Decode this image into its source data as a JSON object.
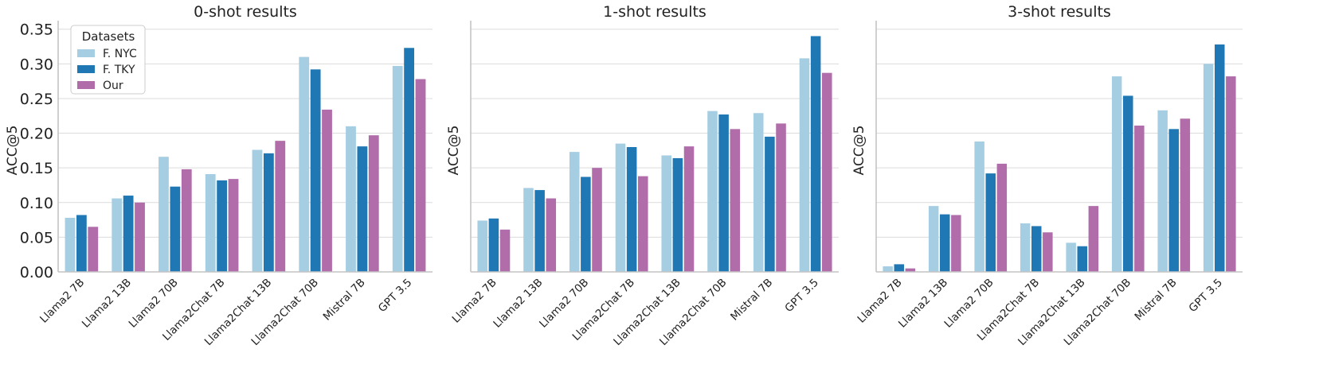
{
  "chart_data": [
    {
      "type": "bar",
      "title": "0-shot results",
      "ylabel": "ACC@5",
      "ylim": [
        0,
        0.36
      ],
      "yticks": [
        "0.00",
        "0.05",
        "0.10",
        "0.15",
        "0.20",
        "0.25",
        "0.30",
        "0.35"
      ],
      "show_ytick_labels": true,
      "categories": [
        "Llama2 7B",
        "Llama2 13B",
        "Llama2 70B",
        "Llama2Chat 7B",
        "Llama2Chat 13B",
        "Llama2Chat 70B",
        "Mistral 7B",
        "GPT 3.5"
      ],
      "series": [
        {
          "name": "F. NYC",
          "values": [
            0.078,
            0.106,
            0.166,
            0.141,
            0.176,
            0.31,
            0.21,
            0.297
          ]
        },
        {
          "name": "F. TKY",
          "values": [
            0.082,
            0.11,
            0.123,
            0.132,
            0.171,
            0.292,
            0.181,
            0.323
          ]
        },
        {
          "name": "Our",
          "values": [
            0.065,
            0.1,
            0.148,
            0.134,
            0.189,
            0.234,
            0.197,
            0.278
          ]
        }
      ],
      "legend": {
        "title": "Datasets",
        "position": "top-left"
      }
    },
    {
      "type": "bar",
      "title": "1-shot results",
      "ylabel": "ACC@5",
      "ylim": [
        0,
        0.36
      ],
      "yticks": [
        "0.00",
        "0.05",
        "0.10",
        "0.15",
        "0.20",
        "0.25",
        "0.30",
        "0.35"
      ],
      "show_ytick_labels": false,
      "categories": [
        "Llama2 7B",
        "Llama2 13B",
        "Llama2 70B",
        "Llama2Chat 7B",
        "Llama2Chat 13B",
        "Llama2Chat 70B",
        "Mistral 7B",
        "GPT 3.5"
      ],
      "series": [
        {
          "name": "F. NYC",
          "values": [
            0.074,
            0.121,
            0.173,
            0.185,
            0.168,
            0.232,
            0.229,
            0.308
          ]
        },
        {
          "name": "F. TKY",
          "values": [
            0.077,
            0.118,
            0.137,
            0.18,
            0.164,
            0.227,
            0.195,
            0.34
          ]
        },
        {
          "name": "Our",
          "values": [
            0.061,
            0.106,
            0.15,
            0.138,
            0.181,
            0.206,
            0.214,
            0.287
          ]
        }
      ]
    },
    {
      "type": "bar",
      "title": "3-shot results",
      "ylabel": "ACC@5",
      "ylim": [
        0,
        0.36
      ],
      "yticks": [
        "0.00",
        "0.05",
        "0.10",
        "0.15",
        "0.20",
        "0.25",
        "0.30",
        "0.35"
      ],
      "show_ytick_labels": false,
      "categories": [
        "Llama2 7B",
        "Llama2 13B",
        "Llama2 70B",
        "Llama2Chat 7B",
        "Llama2Chat 13B",
        "Llama2Chat 70B",
        "Mistral 7B",
        "GPT 3.5"
      ],
      "series": [
        {
          "name": "F. NYC",
          "values": [
            0.008,
            0.095,
            0.188,
            0.07,
            0.042,
            0.282,
            0.233,
            0.3
          ]
        },
        {
          "name": "F. TKY",
          "values": [
            0.011,
            0.083,
            0.142,
            0.066,
            0.037,
            0.254,
            0.206,
            0.328
          ]
        },
        {
          "name": "Our",
          "values": [
            0.005,
            0.082,
            0.156,
            0.057,
            0.095,
            0.211,
            0.221,
            0.282
          ]
        }
      ]
    }
  ],
  "colors": {
    "F. NYC": "#a6cee3",
    "F. TKY": "#1f78b4",
    "Our": "#b06daa"
  }
}
